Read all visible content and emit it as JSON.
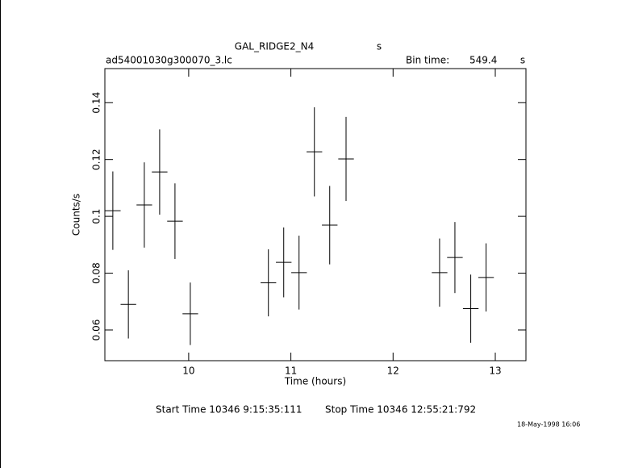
{
  "chart_data": {
    "type": "errorbar",
    "title": "GAL_RIDGE2_N4",
    "title_unit": "s",
    "file_name": "ad54001030g300070_3.lc",
    "bin_time_label": "Bin time:",
    "bin_time": 549.4,
    "bin_time_unit": "s",
    "xlabel": "Time (hours)",
    "ylabel": "Counts/s",
    "start_time": "Start Time 10346  9:15:35:111",
    "stop_time": "Stop Time 10346 12:55:21:792",
    "date": "18-May-1998 16:06",
    "xlim": [
      9.18,
      13.3
    ],
    "ylim": [
      0.0492,
      0.152
    ],
    "xticks": [
      10,
      11,
      12,
      13
    ],
    "yticks": [
      0.06,
      0.08,
      0.1,
      0.12,
      0.14
    ],
    "color": "#000000",
    "series": [
      {
        "x": [
          9.258,
          9.41,
          9.566,
          9.716,
          9.866,
          10.016,
          10.78,
          10.93,
          11.08,
          11.23,
          11.38,
          11.54,
          12.455,
          12.605,
          12.76,
          12.91
        ],
        "values": [
          0.102,
          0.069,
          0.104,
          0.1156,
          0.0983,
          0.0657,
          0.0766,
          0.0838,
          0.0802,
          0.1227,
          0.0969,
          0.1202,
          0.0802,
          0.0855,
          0.0675,
          0.0785
        ],
        "errors": [
          0.0138,
          0.012,
          0.015,
          0.015,
          0.0133,
          0.011,
          0.0118,
          0.0123,
          0.013,
          0.0157,
          0.0138,
          0.0148,
          0.012,
          0.0125,
          0.012,
          0.012
        ]
      }
    ]
  }
}
